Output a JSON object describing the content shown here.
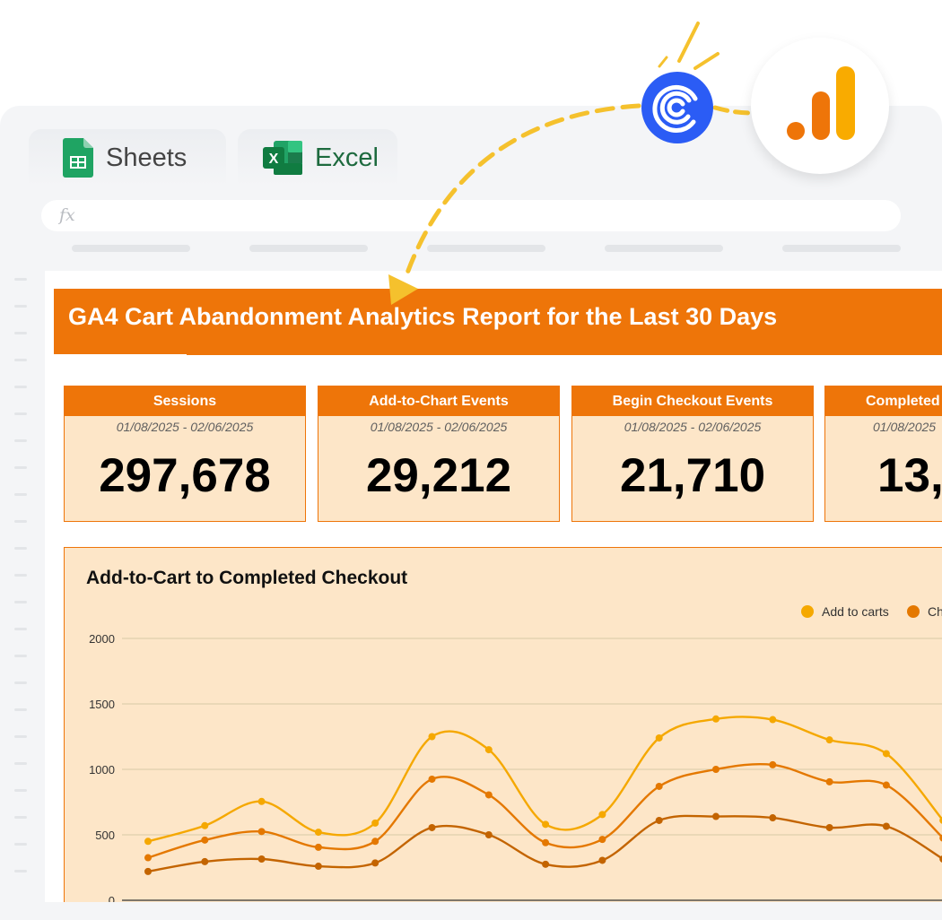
{
  "tabs": [
    {
      "label": "Sheets",
      "icon": "google-sheets-icon"
    },
    {
      "label": "Excel",
      "icon": "excel-icon"
    }
  ],
  "formula_bar": {
    "prefix": "fx"
  },
  "report": {
    "title": "GA4 Cart Abandonment Analytics Report for the Last 30 Days",
    "accent": "#ee7509",
    "card_bg": "#fde6c8"
  },
  "kpis": [
    {
      "label": "Sessions",
      "date_range": "01/08/2025 - 02/06/2025",
      "value": "297,678"
    },
    {
      "label": "Add-to-Chart Events",
      "date_range": "01/08/2025 - 02/06/2025",
      "value": "29,212"
    },
    {
      "label": "Begin Checkout Events",
      "date_range": "01/08/2025 - 02/06/2025",
      "value": "21,710"
    },
    {
      "label": "Completed",
      "date_range": "01/08/2025",
      "value": "13,"
    }
  ],
  "chart_data": {
    "type": "line",
    "title": "Add-to-Cart to Completed Checkout",
    "ylim": [
      0,
      2000
    ],
    "y_ticks": [
      "2000",
      "1500",
      "1000",
      "500",
      "0"
    ],
    "grid": true,
    "legend_placement": "top-right",
    "series": [
      {
        "name": "Add to carts",
        "color": "#f5a800",
        "values": [
          450,
          570,
          755,
          520,
          590,
          1250,
          1150,
          580,
          655,
          1240,
          1385,
          1380,
          1225,
          1120,
          610
        ]
      },
      {
        "name": "Ch",
        "color": "#e47800",
        "values": [
          325,
          460,
          525,
          405,
          450,
          925,
          805,
          440,
          465,
          870,
          1000,
          1035,
          905,
          880,
          475
        ]
      },
      {
        "name": "",
        "color": "#c36400",
        "values": [
          220,
          295,
          315,
          260,
          285,
          555,
          500,
          275,
          305,
          610,
          640,
          630,
          555,
          565,
          315
        ]
      }
    ]
  },
  "branding": {
    "coupler_icon": "coupler-logo-icon",
    "analytics_icon": "google-analytics-icon"
  }
}
